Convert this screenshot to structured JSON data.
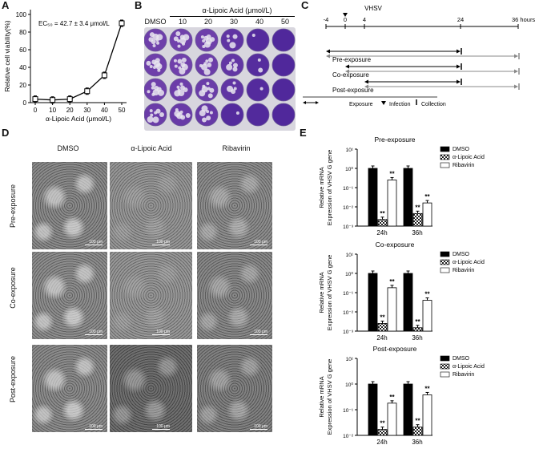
{
  "panels": {
    "A": "A",
    "B": "B",
    "C": "C",
    "D": "D",
    "E": "E"
  },
  "panelA": {
    "annotation": "EC₅₀ = 42.7 ± 3.4 μmol/L",
    "ylabel": "Relative cell viability(%)",
    "xlabel": "α-Lipoic Acid (μmol/L)",
    "yticks": [
      "0",
      "20",
      "40",
      "60",
      "80",
      "100"
    ],
    "xticks": [
      "0",
      "10",
      "20",
      "30",
      "40",
      "50"
    ]
  },
  "panelB": {
    "title": "α-Lipoic Acid (μmol/L)",
    "columns": [
      "DMSO",
      "10",
      "20",
      "30",
      "40",
      "50"
    ]
  },
  "panelC": {
    "virus": "VHSV",
    "axis_ticks": [
      "-4",
      "0",
      "4",
      "24",
      "36 hours"
    ],
    "rows": [
      "Pre-exposure",
      "Co-exposure",
      "Post-exposure"
    ],
    "legend": {
      "exposure": "Exposure",
      "infection": "Infection",
      "collection": "Collection"
    }
  },
  "panelD": {
    "columns": [
      "DMSO",
      "α-Lipoic Acid",
      "Ribavirin"
    ],
    "rows": [
      "Pre-exposure",
      "Co-exposure",
      "Post-exposure"
    ],
    "scale": "100 μm"
  },
  "panelE": {
    "ylabel1": "Relative mRNA",
    "ylabel2": "Expression of VHSV G gene",
    "legend": [
      "DMSO",
      "α-Lipoic Acid",
      "Ribavirin"
    ],
    "significance": "**",
    "colors": {
      "dmso": "#000000",
      "lipoic": "#666666",
      "ribavirin": "#ffffff"
    }
  },
  "chart_data": [
    {
      "type": "line",
      "panel": "A",
      "xlabel": "α-Lipoic Acid (μmol/L)",
      "ylabel": "Relative cell viability(%)",
      "x": [
        0,
        10,
        20,
        30,
        40,
        50
      ],
      "y": [
        4,
        3,
        4,
        13,
        31,
        90
      ],
      "xlim": [
        0,
        50
      ],
      "ylim": [
        0,
        100
      ]
    },
    {
      "type": "bar",
      "panel": "E",
      "title": "Pre-exposure",
      "scale": "log",
      "yticks": [
        "10¹",
        "10⁰",
        "10⁻¹",
        "10⁻²",
        "10⁻³"
      ],
      "ylim": [
        0.001,
        10
      ],
      "categories": [
        "24h",
        "36h"
      ],
      "series": [
        {
          "name": "DMSO",
          "values": [
            1.0,
            1.0
          ]
        },
        {
          "name": "α-Lipoic Acid",
          "values": [
            0.0022,
            0.0045
          ]
        },
        {
          "name": "Ribavirin",
          "values": [
            0.25,
            0.016
          ]
        }
      ]
    },
    {
      "type": "bar",
      "panel": "E",
      "title": "Co-exposure",
      "scale": "log",
      "yticks": [
        "10¹",
        "10⁰",
        "10⁻¹",
        "10⁻²",
        "10⁻³"
      ],
      "ylim": [
        0.001,
        10
      ],
      "categories": [
        "24h",
        "36h"
      ],
      "series": [
        {
          "name": "DMSO",
          "values": [
            1.0,
            1.0
          ]
        },
        {
          "name": "α-Lipoic Acid",
          "values": [
            0.0025,
            0.0015
          ]
        },
        {
          "name": "Ribavirin",
          "values": [
            0.18,
            0.04
          ]
        }
      ]
    },
    {
      "type": "bar",
      "panel": "E",
      "title": "Post-exposure",
      "scale": "log",
      "yticks": [
        "10¹",
        "10⁰",
        "10⁻¹",
        "10⁻²"
      ],
      "ylim": [
        0.01,
        10
      ],
      "categories": [
        "24h",
        "36h"
      ],
      "series": [
        {
          "name": "DMSO",
          "values": [
            1.0,
            1.0
          ]
        },
        {
          "name": "α-Lipoic Acid",
          "values": [
            0.017,
            0.021
          ]
        },
        {
          "name": "Ribavirin",
          "values": [
            0.18,
            0.38
          ]
        }
      ]
    }
  ]
}
